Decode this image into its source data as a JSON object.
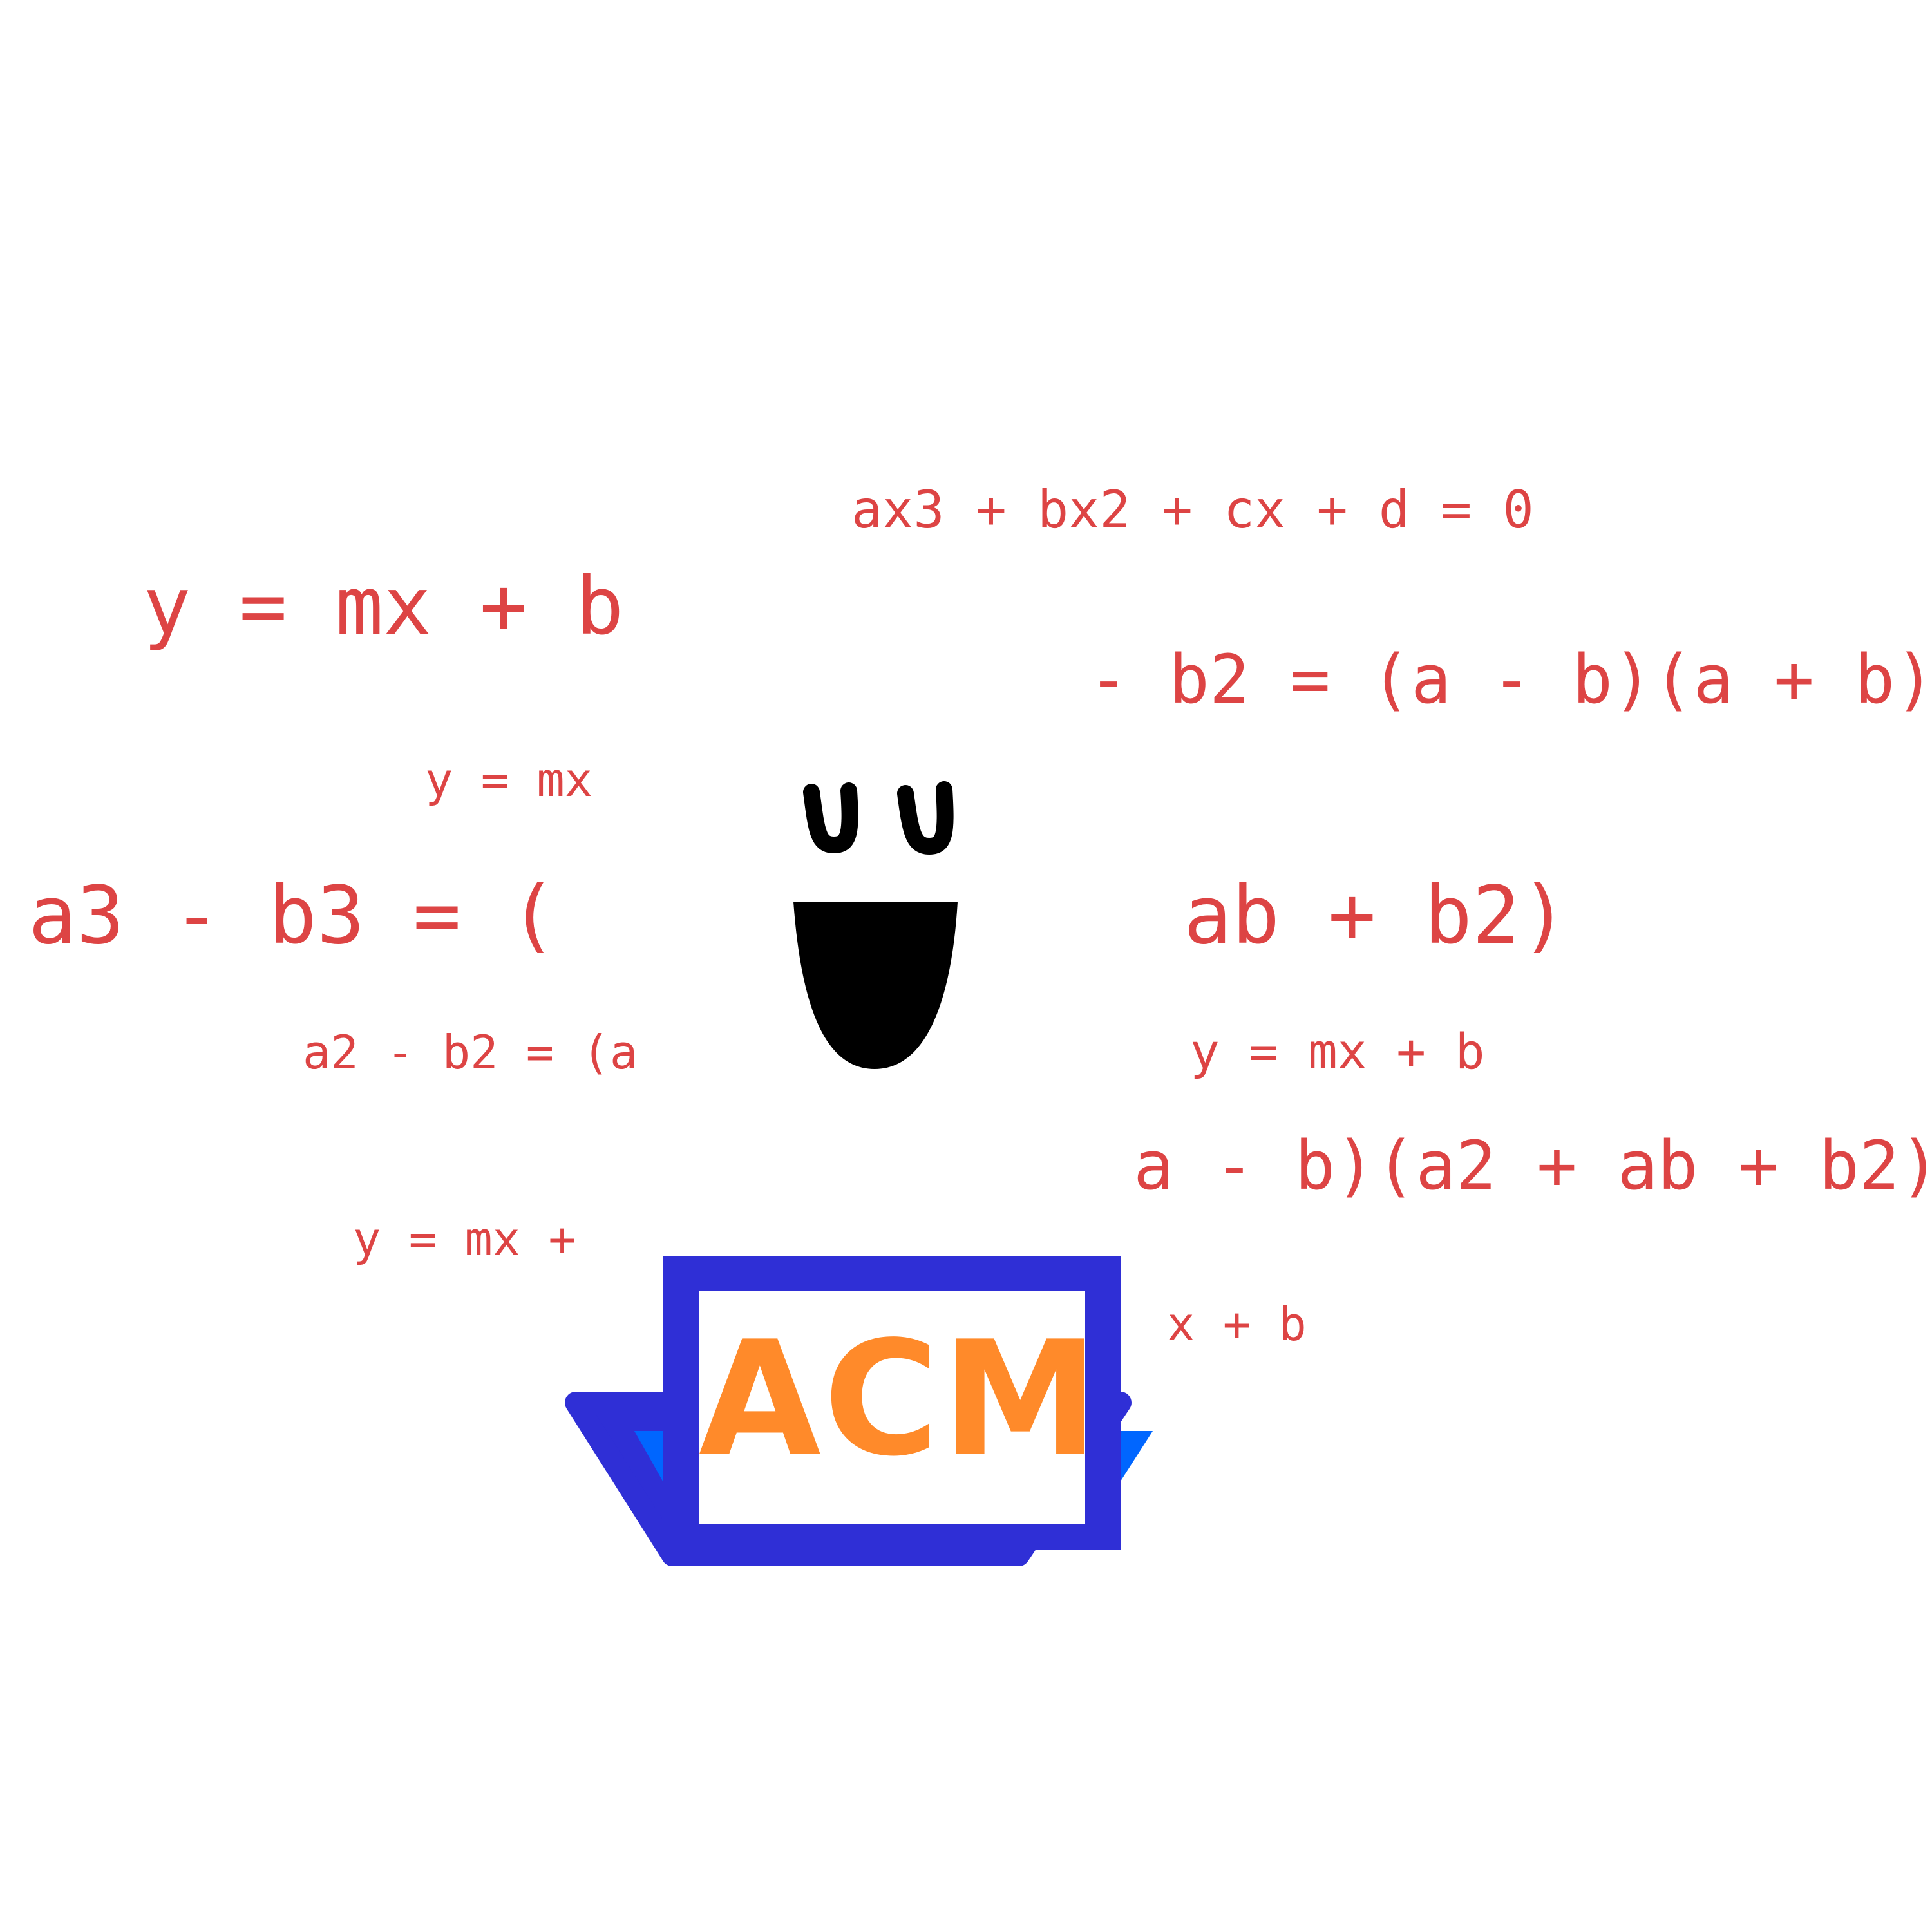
{
  "colors": {
    "background": "#ffffff",
    "equation_text": "#dd4444",
    "face": "#000000",
    "laptop_frame": "#2f2fd6",
    "laptop_side": "#0066ff",
    "laptop_screen": "#ffffff",
    "logo": "#ff8a2a"
  },
  "equations": [
    "ax3 + bx2 + cx + d = 0",
    "y = mx + b",
    "- b2 = (a - b)(a + b)",
    "y = mx",
    "a3 - b3 = (",
    "ab + b2)",
    "a2 - b2 = (a",
    "y = mx + b",
    "a - b)(a2 + ab + b2)",
    "y = mx +",
    "x + b"
  ],
  "laptop": {
    "logo_text": "ACM"
  },
  "icons": {
    "face": "smiling-face-icon",
    "laptop": "laptop-icon"
  }
}
